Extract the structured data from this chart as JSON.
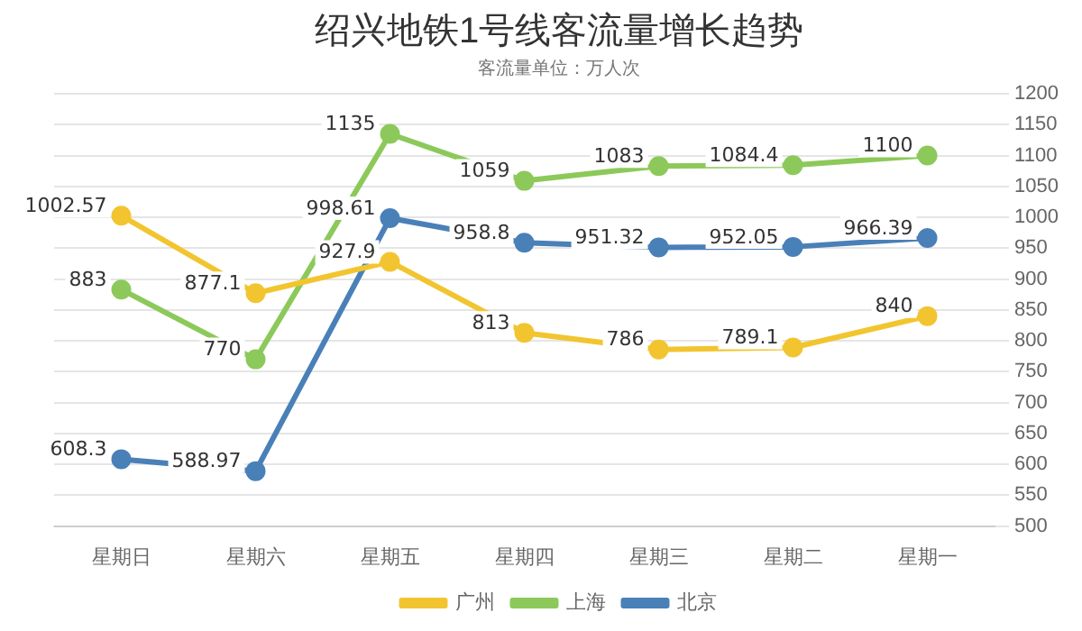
{
  "chart_data": {
    "type": "line",
    "title": "绍兴地铁1号线客流量增长趋势",
    "subtitle": "客流量单位：万人次",
    "categories": [
      "星期日",
      "星期六",
      "星期五",
      "星期四",
      "星期三",
      "星期二",
      "星期一"
    ],
    "series": [
      {
        "name": "广州",
        "color": "#f2c530",
        "values": [
          1002.57,
          877.1,
          927.9,
          813,
          786,
          789.1,
          840
        ]
      },
      {
        "name": "上海",
        "color": "#8cc95a",
        "values": [
          883,
          770,
          1135,
          1059,
          1083,
          1084.4,
          1100
        ]
      },
      {
        "name": "北京",
        "color": "#4a80b8",
        "values": [
          608.3,
          588.97,
          998.61,
          958.8,
          951.32,
          952.05,
          966.39
        ]
      }
    ],
    "ylim": [
      500,
      1200
    ],
    "yticks": [
      500,
      550,
      600,
      650,
      700,
      750,
      800,
      850,
      900,
      950,
      1000,
      1050,
      1100,
      1150,
      1200
    ],
    "grid": "y",
    "legend": "bottom",
    "marker": "circle",
    "data_labels": true
  }
}
